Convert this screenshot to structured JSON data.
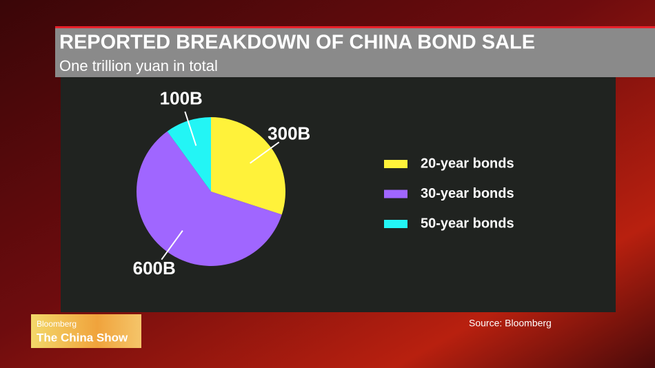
{
  "chart_data": {
    "type": "pie",
    "title": "REPORTED BREAKDOWN OF CHINA BOND SALE",
    "subtitle": "One trillion yuan in total",
    "series": [
      {
        "name": "20-year bonds",
        "color": "#fff23a"
      },
      {
        "name": "30-year bonds",
        "color": "#a066ff"
      },
      {
        "name": "50-year bonds",
        "color": "#23f5f5"
      }
    ],
    "values": [
      300,
      600,
      100
    ],
    "value_labels": [
      "300B",
      "600B",
      "100B"
    ],
    "legend": "right",
    "source": "Source: Bloomberg"
  },
  "branding": {
    "network": "Bloomberg",
    "show": "The China Show"
  }
}
